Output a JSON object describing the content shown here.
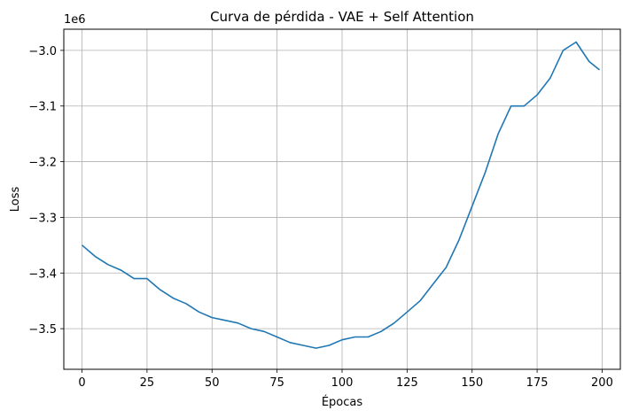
{
  "chart_data": {
    "type": "line",
    "title": "Curva de pérdida - VAE + Self Attention",
    "xlabel": "Épocas",
    "ylabel": "Loss",
    "y_offset_label": "1e6",
    "xlim": [
      -7,
      207
    ],
    "ylim": [
      -3.573,
      -2.962
    ],
    "x_ticks": [
      0,
      25,
      50,
      75,
      100,
      125,
      150,
      175,
      200
    ],
    "x_tick_labels": [
      "0",
      "25",
      "50",
      "75",
      "100",
      "125",
      "150",
      "175",
      "200"
    ],
    "y_ticks": [
      -3.5,
      -3.4,
      -3.3,
      -3.2,
      -3.1,
      -3.0
    ],
    "y_tick_labels": [
      "−3.5",
      "−3.4",
      "−3.3",
      "−3.2",
      "−3.1",
      "−3.0"
    ],
    "grid": true,
    "series": [
      {
        "color": "#1f77b4",
        "x": [
          0,
          5,
          10,
          15,
          20,
          25,
          30,
          35,
          40,
          45,
          50,
          55,
          60,
          65,
          70,
          75,
          80,
          85,
          90,
          95,
          100,
          105,
          110,
          115,
          120,
          125,
          130,
          135,
          140,
          145,
          150,
          155,
          160,
          165,
          170,
          175,
          180,
          185,
          190,
          195,
          199
        ],
        "y": [
          -3.35,
          -3.37,
          -3.385,
          -3.395,
          -3.41,
          -3.41,
          -3.43,
          -3.445,
          -3.455,
          -3.47,
          -3.48,
          -3.485,
          -3.49,
          -3.5,
          -3.505,
          -3.515,
          -3.525,
          -3.53,
          -3.535,
          -3.53,
          -3.52,
          -3.515,
          -3.515,
          -3.505,
          -3.49,
          -3.47,
          -3.45,
          -3.42,
          -3.39,
          -3.34,
          -3.28,
          -3.22,
          -3.15,
          -3.1,
          -3.1,
          -3.08,
          -3.05,
          -3.0,
          -2.985,
          -3.02,
          -3.035
        ]
      }
    ]
  }
}
